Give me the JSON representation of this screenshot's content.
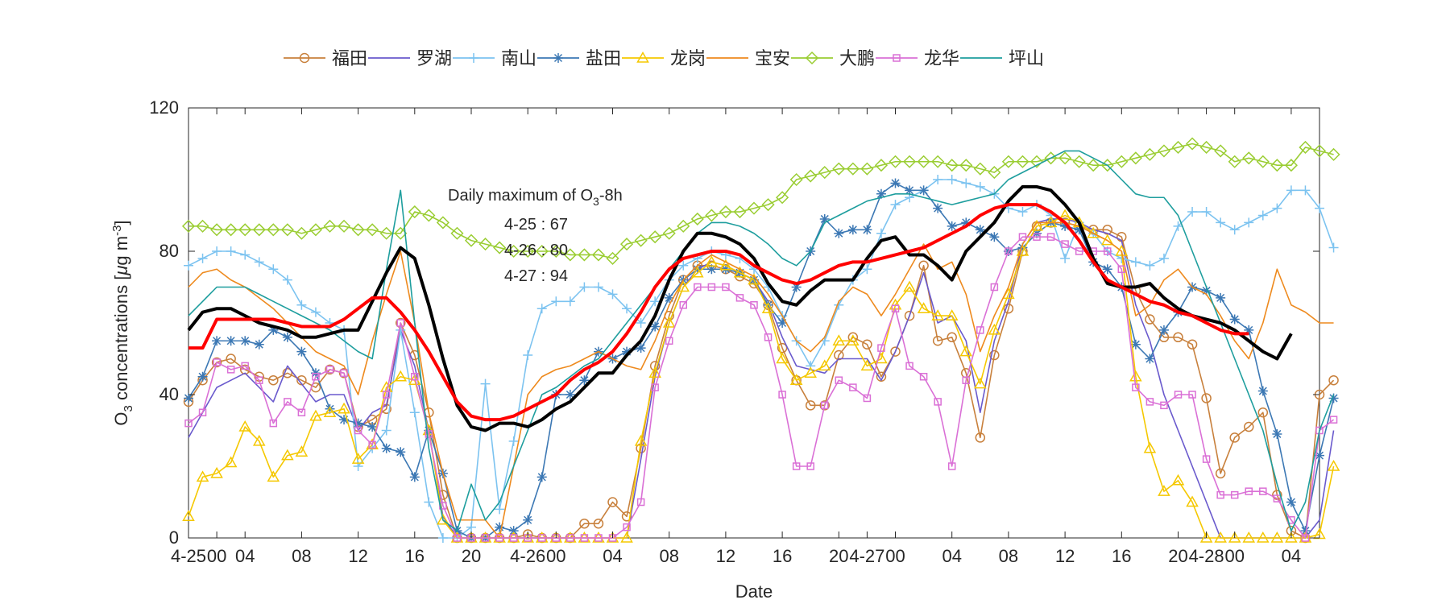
{
  "chart_data": {
    "type": "line",
    "xlabel": "Date",
    "ylabel_main": "O",
    "ylabel_sub": "3",
    "ylabel_rest": " concentrations [",
    "ylabel_mu": "μ",
    "ylabel_unit": "g m",
    "ylabel_sup": "-3",
    "ylabel_end": "]",
    "xlim": [
      0,
      80
    ],
    "ylim": [
      0,
      120
    ],
    "y_ticks": [
      0,
      40,
      80,
      120
    ],
    "x_ticks": [
      {
        "x": 0,
        "label": "4-25"
      },
      {
        "x": 2,
        "label": "00"
      },
      {
        "x": 4,
        "label": "04"
      },
      {
        "x": 8,
        "label": "08"
      },
      {
        "x": 12,
        "label": "12"
      },
      {
        "x": 16,
        "label": "16"
      },
      {
        "x": 20,
        "label": "20"
      },
      {
        "x": 24,
        "label": "4-26"
      },
      {
        "x": 26,
        "label": "00"
      },
      {
        "x": 30,
        "label": "04"
      },
      {
        "x": 34,
        "label": "08"
      },
      {
        "x": 38,
        "label": "12"
      },
      {
        "x": 42,
        "label": "16"
      },
      {
        "x": 46,
        "label": "20"
      },
      {
        "x": 48,
        "label": "4-27"
      },
      {
        "x": 50,
        "label": "00"
      },
      {
        "x": 54,
        "label": "04"
      },
      {
        "x": 58,
        "label": "08"
      },
      {
        "x": 62,
        "label": "12"
      },
      {
        "x": 66,
        "label": "16"
      },
      {
        "x": 70,
        "label": "20"
      },
      {
        "x": 72,
        "label": "4-28"
      },
      {
        "x": 74,
        "label": "00"
      },
      {
        "x": 78,
        "label": "04"
      }
    ],
    "grid": false,
    "legend_position": "top",
    "annotation": {
      "title_pre": "Daily maximum of O",
      "title_sub": "3",
      "title_post": "-8h",
      "lines": [
        "4-25 : 67",
        "4-26 : 80",
        "4-27 : 94"
      ]
    },
    "series": [
      {
        "name": "福田",
        "color": "#C8803C",
        "marker": "circle",
        "values": [
          38,
          44,
          49,
          50,
          47,
          45,
          44,
          46,
          44,
          42,
          47,
          46,
          31,
          33,
          36,
          60,
          51,
          35,
          12,
          0,
          0,
          0,
          0,
          0,
          1,
          0,
          0,
          0,
          4,
          4,
          10,
          6,
          25,
          48,
          62,
          72,
          76,
          76,
          75,
          73,
          71,
          65,
          53,
          44,
          37,
          37,
          51,
          56,
          54,
          45,
          52,
          62,
          76,
          55,
          56,
          46,
          28,
          51,
          64,
          80,
          87,
          88,
          88,
          87,
          86,
          86,
          84,
          69,
          61,
          56,
          56,
          54,
          39,
          18,
          28,
          31,
          35,
          12,
          2,
          0,
          40,
          44
        ]
      },
      {
        "name": "罗湖",
        "color": "#6A5ACD",
        "marker": "none",
        "values": [
          28,
          35,
          42,
          44,
          46,
          42,
          38,
          48,
          43,
          38,
          40,
          40,
          30,
          35,
          37,
          58,
          48,
          30,
          6,
          0,
          0,
          0,
          0,
          0,
          0,
          0,
          0,
          0,
          0,
          0,
          0,
          0,
          22,
          45,
          60,
          70,
          75,
          77,
          76,
          74,
          72,
          66,
          56,
          48,
          47,
          46,
          50,
          50,
          50,
          44,
          52,
          62,
          74,
          60,
          62,
          55,
          35,
          55,
          66,
          82,
          88,
          89,
          89,
          88,
          86,
          85,
          83,
          65,
          55,
          40,
          30,
          20,
          10,
          0,
          0,
          0,
          0,
          0,
          0,
          0,
          5,
          30
        ]
      },
      {
        "name": "南山",
        "color": "#7CC3F0",
        "marker": "plus",
        "values": [
          76,
          78,
          80,
          80,
          79,
          77,
          75,
          72,
          65,
          63,
          60,
          58,
          20,
          25,
          30,
          58,
          35,
          10,
          0,
          0,
          3,
          43,
          8,
          27,
          51,
          64,
          66,
          66,
          70,
          70,
          68,
          64,
          60,
          66,
          72,
          76,
          78,
          80,
          79,
          78,
          75,
          70,
          62,
          55,
          48,
          55,
          65,
          72,
          75,
          85,
          93,
          95,
          97,
          100,
          100,
          99,
          98,
          96,
          92,
          91,
          93,
          90,
          78,
          88,
          85,
          80,
          78,
          77,
          76,
          78,
          87,
          91,
          91,
          88,
          86,
          88,
          90,
          92,
          97,
          97,
          92,
          81
        ]
      },
      {
        "name": "盐田",
        "color": "#3C78B4",
        "marker": "star",
        "values": [
          39,
          45,
          55,
          55,
          55,
          54,
          58,
          56,
          52,
          46,
          36,
          33,
          32,
          31,
          25,
          24,
          17,
          30,
          18,
          2,
          0,
          0,
          3,
          2,
          5,
          17,
          40,
          40,
          44,
          52,
          50,
          52,
          53,
          59,
          67,
          72,
          75,
          75,
          75,
          74,
          72,
          65,
          60,
          70,
          80,
          89,
          85,
          86,
          86,
          96,
          99,
          97,
          97,
          92,
          87,
          88,
          86,
          84,
          80,
          81,
          85,
          88,
          87,
          86,
          77,
          75,
          70,
          54,
          50,
          58,
          63,
          70,
          69,
          67,
          61,
          58,
          41,
          29,
          10,
          2,
          23,
          39
        ]
      },
      {
        "name": "龙岗",
        "color": "#F5C800",
        "marker": "triangle",
        "values": [
          6,
          17,
          18,
          21,
          31,
          27,
          17,
          23,
          24,
          34,
          35,
          36,
          22,
          26,
          42,
          45,
          44,
          30,
          5,
          0,
          0,
          0,
          0,
          0,
          0,
          0,
          0,
          0,
          0,
          0,
          0,
          0,
          27,
          46,
          60,
          70,
          74,
          77,
          76,
          74,
          72,
          64,
          50,
          44,
          46,
          48,
          55,
          55,
          48,
          50,
          65,
          70,
          64,
          62,
          62,
          52,
          43,
          58,
          68,
          80,
          87,
          88,
          90,
          88,
          85,
          83,
          80,
          45,
          25,
          13,
          16,
          10,
          0,
          0,
          0,
          0,
          0,
          0,
          0,
          0,
          1,
          20
        ]
      },
      {
        "name": "宝安",
        "color": "#EE8A1E",
        "marker": "none",
        "values": [
          70,
          74,
          75,
          72,
          70,
          67,
          64,
          60,
          56,
          52,
          50,
          48,
          40,
          55,
          68,
          80,
          60,
          35,
          18,
          5,
          5,
          5,
          0,
          20,
          40,
          45,
          47,
          48,
          50,
          52,
          50,
          48,
          47,
          55,
          65,
          72,
          76,
          79,
          77,
          75,
          73,
          68,
          62,
          55,
          52,
          56,
          66,
          70,
          68,
          62,
          68,
          75,
          82,
          75,
          77,
          68,
          52,
          62,
          70,
          82,
          88,
          88,
          88,
          87,
          85,
          83,
          80,
          62,
          65,
          72,
          75,
          70,
          68,
          62,
          55,
          50,
          60,
          75,
          65,
          63,
          60,
          60
        ]
      },
      {
        "name": "大鹏",
        "color": "#9ACD32",
        "marker": "diamond",
        "values": [
          87,
          87,
          86,
          86,
          86,
          86,
          86,
          86,
          85,
          86,
          87,
          87,
          86,
          86,
          85,
          85,
          91,
          90,
          88,
          85,
          83,
          82,
          81,
          80,
          80,
          80,
          80,
          79,
          79,
          79,
          78,
          82,
          83,
          84,
          85,
          87,
          89,
          90,
          91,
          91,
          92,
          93,
          95,
          100,
          101,
          102,
          103,
          103,
          103,
          104,
          105,
          105,
          105,
          105,
          104,
          104,
          103,
          102,
          105,
          105,
          105,
          106,
          106,
          105,
          104,
          104,
          105,
          106,
          107,
          108,
          109,
          110,
          109,
          108,
          105,
          106,
          105,
          104,
          104,
          109,
          108,
          107
        ]
      },
      {
        "name": "龙华",
        "color": "#DA70D6",
        "marker": "square",
        "values": [
          32,
          35,
          49,
          47,
          48,
          44,
          32,
          38,
          35,
          45,
          47,
          46,
          30,
          26,
          40,
          60,
          45,
          29,
          9,
          0,
          0,
          0,
          0,
          0,
          0,
          0,
          0,
          0,
          0,
          0,
          0,
          3,
          10,
          42,
          55,
          65,
          70,
          70,
          70,
          67,
          65,
          56,
          40,
          20,
          20,
          37,
          44,
          42,
          39,
          53,
          64,
          48,
          45,
          38,
          20,
          44,
          58,
          70,
          80,
          84,
          84,
          84,
          82,
          80,
          80,
          80,
          75,
          42,
          38,
          37,
          40,
          40,
          22,
          12,
          12,
          13,
          13,
          11,
          5,
          0,
          30,
          33
        ]
      },
      {
        "name": "坪山",
        "color": "#1E9E9E",
        "marker": "none",
        "values": [
          62,
          66,
          70,
          70,
          70,
          68,
          66,
          64,
          62,
          60,
          58,
          55,
          52,
          50,
          75,
          97,
          60,
          25,
          5,
          2,
          15,
          5,
          10,
          20,
          30,
          40,
          42,
          45,
          48,
          50,
          55,
          60,
          65,
          70,
          75,
          80,
          85,
          88,
          88,
          87,
          85,
          82,
          78,
          76,
          80,
          88,
          90,
          92,
          94,
          95,
          96,
          96,
          95,
          94,
          93,
          94,
          95,
          96,
          100,
          102,
          104,
          106,
          108,
          108,
          106,
          104,
          100,
          96,
          95,
          95,
          90,
          80,
          70,
          60,
          50,
          40,
          30,
          15,
          2,
          10,
          30,
          40
        ]
      },
      {
        "name": "",
        "color": "#000000",
        "marker": "none",
        "width": 4,
        "values": [
          58,
          63,
          64,
          64,
          62,
          60,
          59,
          58,
          56,
          56,
          57,
          58,
          58,
          66,
          74,
          81,
          78,
          65,
          50,
          37,
          31,
          30,
          32,
          32,
          31,
          33,
          36,
          38,
          42,
          46,
          46,
          51,
          55,
          62,
          72,
          80,
          85,
          85,
          84,
          82,
          78,
          71,
          66,
          65,
          69,
          72,
          72,
          72,
          78,
          83,
          84,
          79,
          79,
          76,
          72,
          80,
          84,
          88,
          94,
          98,
          98,
          97,
          93,
          88,
          78,
          71,
          70,
          70,
          71,
          67,
          64,
          62,
          61,
          60,
          58,
          55,
          52,
          50,
          57
        ]
      },
      {
        "name": "",
        "color": "#FF0000",
        "marker": "none",
        "width": 4,
        "values": [
          53,
          53,
          61,
          61,
          61,
          61,
          61,
          60,
          59,
          59,
          59,
          61,
          64,
          67,
          67,
          63,
          58,
          52,
          45,
          38,
          34,
          33,
          33,
          34,
          36,
          38,
          40,
          44,
          47,
          49,
          52,
          57,
          63,
          70,
          75,
          78,
          79,
          80,
          80,
          79,
          76,
          74,
          72,
          71,
          72,
          74,
          76,
          77,
          77,
          78,
          79,
          80,
          81,
          83,
          85,
          87,
          90,
          92,
          93,
          93,
          93,
          91,
          88,
          83,
          77,
          72,
          70,
          68,
          66,
          65,
          63,
          62,
          60,
          58,
          57,
          57
        ]
      }
    ]
  }
}
